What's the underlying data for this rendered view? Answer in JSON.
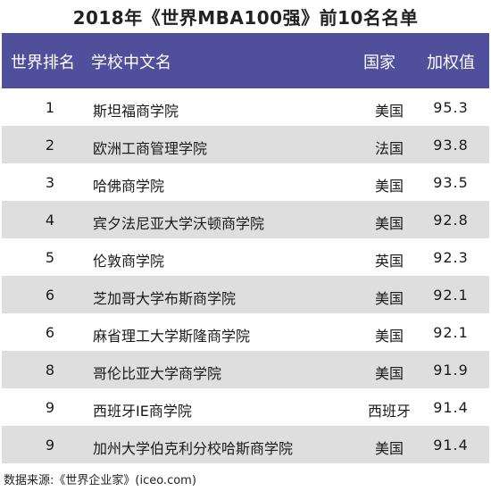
{
  "title": "2018年《世界MBA100强》前10名名单",
  "table": {
    "headers": [
      "世界排名",
      "学校中文名",
      "国家",
      "加权值"
    ],
    "rows": [
      {
        "rank": "1",
        "name": "斯坦福商学院",
        "country": "美国",
        "score": "95.3"
      },
      {
        "rank": "2",
        "name": "欧洲工商管理学院",
        "country": "法国",
        "score": "93.8"
      },
      {
        "rank": "3",
        "name": "哈佛商学院",
        "country": "美国",
        "score": "93.5"
      },
      {
        "rank": "4",
        "name": "宾夕法尼亚大学沃顿商学院",
        "country": "美国",
        "score": "92.8"
      },
      {
        "rank": "5",
        "name": "伦敦商学院",
        "country": "英国",
        "score": "92.3"
      },
      {
        "rank": "6",
        "name": "芝加哥大学布斯商学院",
        "country": "美国",
        "score": "92.1"
      },
      {
        "rank": "6",
        "name": "麻省理工大学斯隆商学院",
        "country": "美国",
        "score": "92.1"
      },
      {
        "rank": "8",
        "name": "哥伦比亚大学商学院",
        "country": "美国",
        "score": "91.9"
      },
      {
        "rank": "9",
        "name": "西班牙IE商学院",
        "country": "西班牙",
        "score": "91.4"
      },
      {
        "rank": "9",
        "name": "加州大学伯克利分校哈斯商学院",
        "country": "美国",
        "score": "91.4"
      }
    ]
  },
  "source": "数据来源:《世界企业家》(iceo.com)",
  "colors": {
    "header_bg": "#4f4f9c",
    "stripe": "#dedede"
  }
}
